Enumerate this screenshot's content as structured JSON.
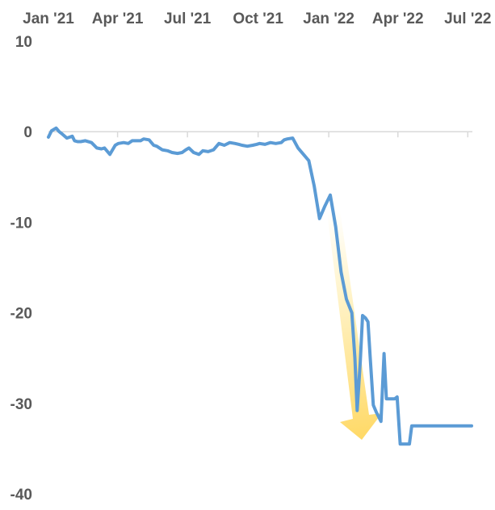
{
  "chart_data": {
    "type": "line",
    "title": "",
    "xlabel": "",
    "ylabel": "",
    "x_tick_labels": [
      "Jan '21",
      "Apr '21",
      "Jul '21",
      "Oct '21",
      "Jan '22",
      "Apr '22",
      "Jul '22"
    ],
    "x_tick_dates": [
      "2021-01-01",
      "2021-04-01",
      "2021-07-01",
      "2021-10-01",
      "2022-01-01",
      "2022-04-01",
      "2022-07-01"
    ],
    "y_tick_labels": [
      "10",
      "0",
      "-10",
      "-20",
      "-30",
      "-40"
    ],
    "y_tick_values": [
      10,
      0,
      -10,
      -20,
      -30,
      -40
    ],
    "ylim": [
      -40,
      10
    ],
    "xlim": [
      "2021-01-01",
      "2022-07-07"
    ],
    "grid": false,
    "series_color": "#5B9BD5",
    "annotation": {
      "type": "arrow",
      "direction": "down",
      "color": "#FFD966"
    },
    "x": [
      "2021-01-01",
      "2021-01-05",
      "2021-01-11",
      "2021-01-15",
      "2021-01-18",
      "2021-01-25",
      "2021-02-01",
      "2021-02-04",
      "2021-02-08",
      "2021-02-12",
      "2021-02-18",
      "2021-02-26",
      "2021-03-05",
      "2021-03-11",
      "2021-03-15",
      "2021-03-22",
      "2021-03-29",
      "2021-04-02",
      "2021-04-09",
      "2021-04-15",
      "2021-04-20",
      "2021-04-25",
      "2021-05-01",
      "2021-05-05",
      "2021-05-12",
      "2021-05-18",
      "2021-05-22",
      "2021-05-29",
      "2021-06-05",
      "2021-06-11",
      "2021-06-18",
      "2021-06-24",
      "2021-06-29",
      "2021-07-03",
      "2021-07-09",
      "2021-07-16",
      "2021-07-21",
      "2021-07-28",
      "2021-08-04",
      "2021-08-11",
      "2021-08-18",
      "2021-08-25",
      "2021-09-01",
      "2021-09-06",
      "2021-09-10",
      "2021-09-17",
      "2021-09-24",
      "2021-09-29",
      "2021-10-03",
      "2021-10-10",
      "2021-10-17",
      "2021-10-24",
      "2021-10-31",
      "2021-11-04",
      "2021-11-08",
      "2021-11-15",
      "2021-11-22",
      "2021-11-29",
      "2021-12-06",
      "2021-12-13",
      "2021-12-20",
      "2021-12-27",
      "2022-01-03",
      "2022-01-10",
      "2022-01-17",
      "2022-01-24",
      "2022-01-31",
      "2022-02-04",
      "2022-02-07",
      "2022-02-11",
      "2022-02-14",
      "2022-02-18",
      "2022-02-21",
      "2022-02-24",
      "2022-02-28",
      "2022-03-04",
      "2022-03-07",
      "2022-03-10",
      "2022-03-14",
      "2022-03-17",
      "2022-03-21",
      "2022-03-24",
      "2022-03-28",
      "2022-03-31",
      "2022-04-04",
      "2022-04-08",
      "2022-04-12",
      "2022-04-16",
      "2022-04-19",
      "2022-04-23",
      "2022-04-27",
      "2022-04-30",
      "2022-05-04",
      "2022-05-08",
      "2022-05-12",
      "2022-05-15",
      "2022-05-19",
      "2022-05-22",
      "2022-05-26",
      "2022-05-30",
      "2022-06-03",
      "2022-06-06",
      "2022-06-09",
      "2022-06-13",
      "2022-06-17",
      "2022-06-20",
      "2022-06-24",
      "2022-06-27",
      "2022-07-01",
      "2022-07-04",
      "2022-07-06"
    ],
    "values": [
      -0.6,
      0.1,
      0.4,
      0.0,
      -0.2,
      -0.7,
      -0.5,
      -1.0,
      -1.1,
      -1.1,
      -1.0,
      -1.2,
      -1.8,
      -1.9,
      -1.8,
      -2.5,
      -1.5,
      -1.3,
      -1.2,
      -1.3,
      -1.0,
      -1.0,
      -1.0,
      -0.8,
      -0.9,
      -1.5,
      -1.6,
      -2.0,
      -2.1,
      -2.3,
      -2.4,
      -2.3,
      -2.0,
      -1.8,
      -2.3,
      -2.5,
      -2.1,
      -2.2,
      -2.0,
      -1.3,
      -1.5,
      -1.2,
      -1.3,
      -1.4,
      -1.5,
      -1.6,
      -1.5,
      -1.4,
      -1.3,
      -1.4,
      -1.2,
      -1.3,
      -1.2,
      -0.9,
      -0.8,
      -0.7,
      -1.8,
      -2.5,
      -3.2,
      -6.0,
      -9.6,
      -8.2,
      -7.0,
      -10.5,
      -15.5,
      -18.5,
      -20.0,
      -25.0,
      -30.8,
      -25.5,
      -20.3,
      -20.6,
      -21.0,
      -25.0,
      -30.2,
      -31.0,
      -31.5,
      -32.0,
      -24.5,
      -29.5,
      -29.5,
      -29.5,
      -29.5,
      -29.3,
      -34.5,
      -34.5,
      -34.5,
      -34.5,
      -32.5,
      -32.5,
      -32.5,
      -32.5,
      -32.5,
      -32.5,
      -32.5,
      -32.5,
      -32.5,
      -32.5,
      -32.5,
      -32.5,
      -32.5,
      -32.5,
      -32.5,
      -32.5,
      -32.5,
      -32.5,
      -32.5,
      -32.5,
      -32.5,
      -32.5,
      -32.5
    ]
  }
}
